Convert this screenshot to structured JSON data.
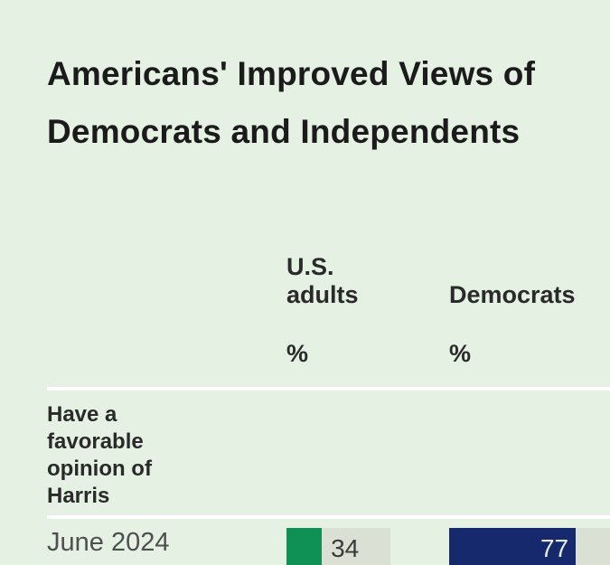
{
  "page": {
    "background": "#e4f1e3",
    "title_line1": "Americans' Improved Views of",
    "title_line2": "Democrats and Independents"
  },
  "table": {
    "columns": [
      {
        "label": "U.S. adults",
        "unit": "%"
      },
      {
        "label": "Democrats",
        "unit": "%"
      }
    ],
    "row_group": {
      "label": "Have a favorable opinion of Harris",
      "label_lines": [
        "Have a",
        "favorable",
        "opinion of",
        "Harris"
      ]
    },
    "rows": [
      {
        "period": "June 2024",
        "values": [
          {
            "column": "U.S. adults",
            "value": 34,
            "bar_color": "#0f9155",
            "label_position": "outside"
          },
          {
            "column": "Democrats",
            "value": 77,
            "bar_color": "#16296d",
            "label_position": "inside"
          }
        ]
      }
    ]
  },
  "chart_data": {
    "type": "bar",
    "title": "Americans' Improved Views of Democrats and Independents",
    "group_label": "Have a favorable opinion of Harris",
    "categories": [
      "June 2024"
    ],
    "series": [
      {
        "name": "U.S. adults",
        "values": [
          34
        ],
        "color": "#0f9155"
      },
      {
        "name": "Democrats",
        "values": [
          77
        ],
        "color": "#16296d"
      }
    ],
    "unit": "%",
    "xlim": [
      0,
      100
    ],
    "grid": false,
    "legend_position": "column-headers",
    "bar_track_color": "#dbe0d4"
  },
  "colors": {
    "background": "#e4f1e3",
    "title_text": "#1b1b1b",
    "header_text": "#2a2a2a",
    "period_text": "#4f4f4f",
    "divider": "#ffffff",
    "bar_track": "#dbe0d4",
    "green": "#0f9155",
    "navy": "#16296d",
    "value_outside": "#3a3a3a",
    "value_inside": "#e8ecf4"
  }
}
